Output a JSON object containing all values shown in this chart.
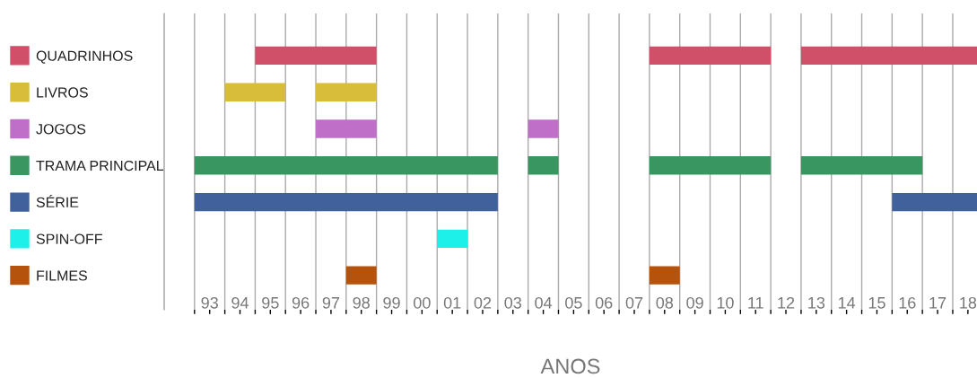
{
  "chart_data": {
    "type": "bar",
    "orientation": "horizontal",
    "xlabel": "ANOS",
    "categories": [
      "QUADRINHOS",
      "LIVROS",
      "JOGOS",
      "TRAMA PRINCIPAL",
      "SÉRIE",
      "SPIN-OFF",
      "FILMES"
    ],
    "series": [
      {
        "colors": [
          "#d0506a",
          "#d8bd3a",
          "#c06fc8",
          "#3a9660",
          "#40619c",
          "#1cf0e8",
          "#b5520c"
        ],
        "base": [
          1994.5,
          1993.5,
          1996.5,
          1992.5,
          1992.5,
          2000.5,
          1997.5
        ],
        "values": [
          4,
          2,
          2,
          10,
          10,
          1,
          1
        ]
      },
      {
        "colors": [
          "#d0506a",
          "#d8bd3a",
          "#c06fc8",
          "#3a9660",
          "#40619c",
          null,
          "#b5520c"
        ],
        "base": [
          2007.5,
          1996.5,
          2003.5,
          2003.5,
          2015.5,
          null,
          2007.5
        ],
        "values": [
          4,
          2,
          1,
          1,
          2.8,
          null,
          1
        ]
      },
      {
        "colors": [
          "#d0506a",
          null,
          null,
          "#3a9660",
          null,
          null,
          null
        ],
        "base": [
          2012.5,
          null,
          null,
          2007.5,
          null,
          null,
          null
        ],
        "values": [
          5.8,
          null,
          null,
          4,
          null,
          null,
          null
        ]
      },
      {
        "colors": [
          null,
          null,
          null,
          "#3a9660",
          null,
          null,
          null
        ],
        "base": [
          null,
          null,
          null,
          2012.5,
          null,
          null,
          null
        ],
        "values": [
          null,
          null,
          null,
          4,
          null,
          null,
          null
        ]
      }
    ],
    "xlim": [
      1991.5,
      2018.3
    ],
    "xticks": [
      {
        "value": 1992.5,
        "label": null
      },
      {
        "value": 1993,
        "label": "93"
      },
      {
        "value": 1993.5,
        "label": null
      },
      {
        "value": 1994,
        "label": "94"
      },
      {
        "value": 1994.5,
        "label": null
      },
      {
        "value": 1995,
        "label": "95"
      },
      {
        "value": 1995.5,
        "label": null
      },
      {
        "value": 1996,
        "label": "96"
      },
      {
        "value": 1996.5,
        "label": null
      },
      {
        "value": 1997,
        "label": "97"
      },
      {
        "value": 1997.5,
        "label": null
      },
      {
        "value": 1998,
        "label": "98"
      },
      {
        "value": 1998.5,
        "label": null
      },
      {
        "value": 1999,
        "label": "99"
      },
      {
        "value": 1999.5,
        "label": null
      },
      {
        "value": 2000,
        "label": "00"
      },
      {
        "value": 2000.5,
        "label": null
      },
      {
        "value": 2001,
        "label": "01"
      },
      {
        "value": 2001.5,
        "label": null
      },
      {
        "value": 2002,
        "label": "02"
      },
      {
        "value": 2002.5,
        "label": null
      },
      {
        "value": 2003,
        "label": "03"
      },
      {
        "value": 2003.5,
        "label": null
      },
      {
        "value": 2004,
        "label": "04"
      },
      {
        "value": 2004.5,
        "label": null
      },
      {
        "value": 2005,
        "label": "05"
      },
      {
        "value": 2005.5,
        "label": null
      },
      {
        "value": 2006,
        "label": "06"
      },
      {
        "value": 2006.5,
        "label": null
      },
      {
        "value": 2007,
        "label": "07"
      },
      {
        "value": 2007.5,
        "label": null
      },
      {
        "value": 2008,
        "label": "08"
      },
      {
        "value": 2008.5,
        "label": null
      },
      {
        "value": 2009,
        "label": "09"
      },
      {
        "value": 2009.5,
        "label": null
      },
      {
        "value": 2010,
        "label": "10"
      },
      {
        "value": 2010.5,
        "label": null
      },
      {
        "value": 2011,
        "label": "11"
      },
      {
        "value": 2011.5,
        "label": null
      },
      {
        "value": 2012,
        "label": "12"
      },
      {
        "value": 2012.5,
        "label": null
      },
      {
        "value": 2013,
        "label": "13"
      },
      {
        "value": 2013.5,
        "label": null
      },
      {
        "value": 2014,
        "label": "14"
      },
      {
        "value": 2014.5,
        "label": null
      },
      {
        "value": 2015,
        "label": "15"
      },
      {
        "value": 2015.5,
        "label": null
      },
      {
        "value": 2016,
        "label": "16"
      },
      {
        "value": 2016.5,
        "label": null
      },
      {
        "value": 2017,
        "label": "17"
      },
      {
        "value": 2017.5,
        "label": null
      },
      {
        "value": 2018,
        "label": "18"
      }
    ],
    "grid": "x"
  }
}
